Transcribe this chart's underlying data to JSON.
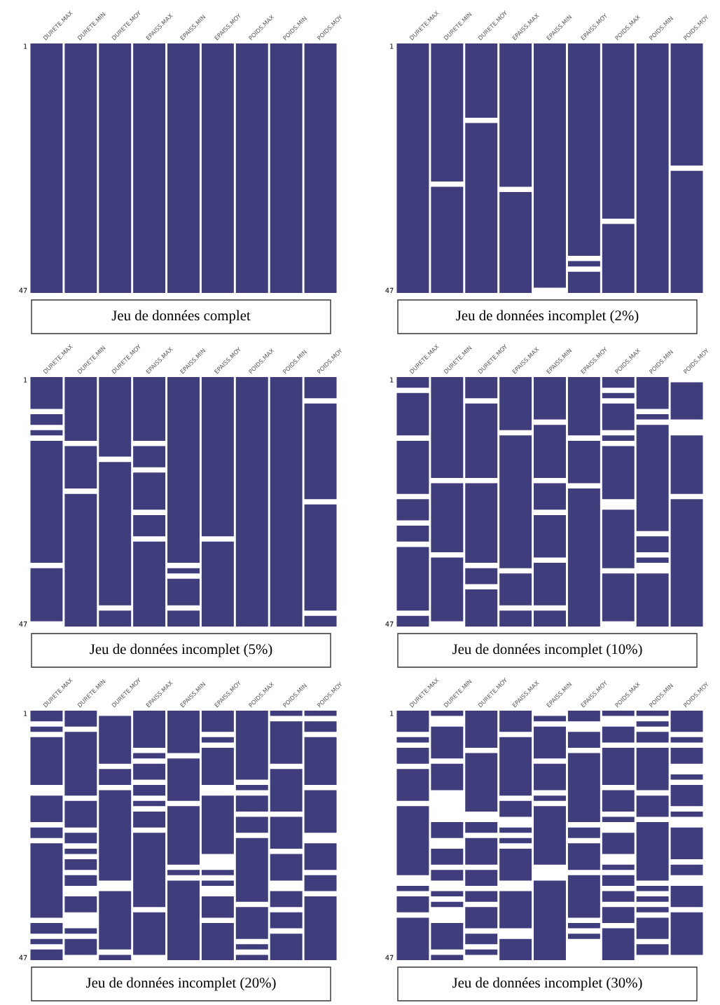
{
  "chart_data": [
    {
      "type": "bar",
      "title": "Jeu de données complet",
      "categories": [
        "DURETE.MAX",
        "DURETE.MIN",
        "DURETE.MOY",
        "EPAISS.MAX",
        "EPAISS.MIN",
        "EPAISS.MOY",
        "POIDS.MAX",
        "POIDS.MIN",
        "POIDS.MOY"
      ],
      "ylim": [
        47.5,
        0.5
      ],
      "yticks": [
        1,
        47
      ],
      "series": [
        {
          "color": "#3f3d7c",
          "base": [
            0.5,
            0.5,
            0.5,
            0.5,
            0.5,
            0.5,
            0.5,
            0.5,
            0.5
          ],
          "values": [
            47,
            47,
            47,
            47,
            47,
            47,
            47,
            47,
            47
          ]
        }
      ]
    },
    {
      "type": "bar",
      "title": "Jeu de données incomplet (2%)",
      "categories": [
        "DURETE.MAX",
        "DURETE.MIN",
        "DURETE.MOY",
        "EPAISS.MAX",
        "EPAISS.MIN",
        "EPAISS.MOY",
        "POIDS.MAX",
        "POIDS.MIN",
        "POIDS.MOY"
      ],
      "ylim": [
        47.5,
        0.5
      ],
      "yticks": [
        1,
        47
      ],
      "series": [
        {
          "color": "#3f3d7c",
          "base": [
            0.5,
            0.5,
            0.5,
            0.5,
            0.5,
            0.5,
            0.5,
            0.5,
            0.5
          ],
          "values": [
            47,
            26,
            14,
            27,
            46,
            40,
            33,
            47,
            23
          ]
        },
        {
          "color": "#3f3d7c",
          "base": [
            null,
            27.5,
            15.5,
            28.5,
            null,
            41.5,
            34.5,
            null,
            24.5
          ],
          "values": [
            null,
            20,
            32,
            19,
            null,
            1,
            13,
            null,
            23
          ]
        },
        {
          "color": "#3f3d7c",
          "base": [
            null,
            null,
            null,
            null,
            null,
            43.5,
            null,
            null,
            null
          ],
          "values": [
            null,
            null,
            null,
            null,
            null,
            4,
            null,
            null,
            null
          ]
        }
      ]
    },
    {
      "type": "bar",
      "title": "Jeu de données incomplet (5%)",
      "categories": [
        "DURETE.MAX",
        "DURETE.MIN",
        "DURETE.MOY",
        "EPAISS.MAX",
        "EPAISS.MIN",
        "EPAISS.MOY",
        "POIDS.MAX",
        "POIDS.MIN",
        "POIDS.MOY"
      ],
      "ylim": [
        47.5,
        0.5
      ],
      "yticks": [
        1,
        47
      ],
      "series": [
        {
          "color": "#3f3d7c",
          "base": [
            0.5,
            0.5,
            0.5,
            0.5,
            0.5,
            0.5,
            0.5,
            0.5,
            0.5
          ],
          "values": [
            6,
            12,
            15,
            12,
            35,
            30,
            47,
            47,
            4
          ]
        },
        {
          "color": "#3f3d7c",
          "base": [
            7.5,
            13.5,
            16.5,
            13.5,
            36.5,
            31.5,
            null,
            null,
            5.5
          ],
          "values": [
            2,
            8,
            27,
            4,
            1,
            16,
            null,
            null,
            18
          ]
        },
        {
          "color": "#3f3d7c",
          "base": [
            10.5,
            22.5,
            44.5,
            18.5,
            38.5,
            null,
            null,
            null,
            24.5
          ],
          "values": [
            1,
            25,
            3,
            7,
            5,
            null,
            null,
            null,
            20
          ]
        },
        {
          "color": "#3f3d7c",
          "base": [
            12.5,
            null,
            null,
            26.5,
            44.5,
            null,
            null,
            null,
            45.5
          ],
          "values": [
            23,
            null,
            null,
            4,
            3,
            null,
            null,
            null,
            2
          ]
        },
        {
          "color": "#3f3d7c",
          "base": [
            36.5,
            null,
            null,
            31.5,
            null,
            null,
            null,
            null,
            null
          ],
          "values": [
            10,
            null,
            null,
            16,
            null,
            null,
            null,
            null,
            null
          ]
        }
      ]
    },
    {
      "type": "bar",
      "title": "Jeu de données incomplet (10%)",
      "categories": [
        "DURETE.MAX",
        "DURETE.MIN",
        "DURETE.MOY",
        "EPAISS.MAX",
        "EPAISS.MIN",
        "EPAISS.MOY",
        "POIDS.MAX",
        "POIDS.MIN",
        "POIDS.MOY"
      ],
      "ylim": [
        47.5,
        0.5
      ],
      "yticks": [
        1,
        47
      ],
      "series": [
        {
          "color": "#3f3d7c",
          "base": [
            0.5,
            0.5,
            0.5,
            0.5,
            0.5,
            0.5,
            0.5,
            0.5,
            1.5
          ],
          "values": [
            2,
            19,
            4,
            10,
            8,
            11,
            2,
            6,
            7
          ]
        },
        {
          "color": "#3f3d7c",
          "base": [
            3.5,
            20.5,
            5.5,
            11.5,
            9.5,
            12.5,
            3.5,
            7.5,
            11.5
          ],
          "values": [
            8,
            13,
            14,
            25,
            10,
            8,
            1,
            1,
            11
          ]
        },
        {
          "color": "#3f3d7c",
          "base": [
            12.5,
            34.5,
            20.5,
            37.5,
            20.5,
            21.5,
            5.5,
            9.5,
            23.5
          ],
          "values": [
            10,
            12,
            15,
            6,
            5,
            26,
            5,
            20,
            24
          ]
        },
        {
          "color": "#3f3d7c",
          "base": [
            23.5,
            null,
            36.5,
            44.5,
            26.5,
            null,
            11.5,
            30.5,
            null
          ],
          "values": [
            4,
            null,
            3,
            3,
            8,
            null,
            1,
            3,
            null
          ]
        },
        {
          "color": "#3f3d7c",
          "base": [
            28.5,
            null,
            40.5,
            null,
            35.5,
            null,
            13.5,
            34.5,
            null
          ],
          "values": [
            3,
            null,
            7,
            null,
            8,
            null,
            10,
            1,
            null
          ]
        },
        {
          "color": "#3f3d7c",
          "base": [
            32.5,
            null,
            null,
            null,
            44.5,
            null,
            25.5,
            37.5,
            null
          ],
          "values": [
            12,
            null,
            null,
            null,
            3,
            null,
            11,
            10,
            null
          ]
        },
        {
          "color": "#3f3d7c",
          "base": [
            45.5,
            null,
            null,
            null,
            null,
            null,
            37.5,
            null,
            null
          ],
          "values": [
            2,
            null,
            null,
            null,
            null,
            null,
            9,
            null,
            null
          ]
        }
      ]
    },
    {
      "type": "bar",
      "title": "Jeu de données incomplet (20%)",
      "categories": [
        "DURETE.MAX",
        "DURETE.MIN",
        "DURETE.MOY",
        "EPAISS.MAX",
        "EPAISS.MIN",
        "EPAISS.MOY",
        "POIDS.MAX",
        "POIDS.MIN",
        "POIDS.MOY"
      ],
      "ylim": [
        47.5,
        0.5
      ],
      "yticks": [
        1,
        47
      ],
      "series": [
        {
          "color": "#3f3d7c",
          "base": [
            0.5,
            0.5,
            1.5,
            0.5,
            0.5,
            0.5,
            0.5,
            0.5,
            0.5
          ],
          "values": [
            2,
            3,
            9,
            7,
            8,
            4,
            13,
            1,
            1
          ]
        },
        {
          "color": "#3f3d7c",
          "base": [
            3.5,
            4.5,
            11.5,
            8.5,
            9.5,
            5.5,
            14.5,
            2.5,
            2.5
          ],
          "values": [
            1,
            12,
            3,
            1,
            8,
            1,
            1,
            8,
            2
          ]
        },
        {
          "color": "#3f3d7c",
          "base": [
            5.5,
            17.5,
            15.5,
            10.5,
            18.5,
            7.5,
            16.5,
            11.5,
            5.5
          ],
          "values": [
            9,
            5,
            17,
            3,
            11,
            7,
            3,
            8,
            9
          ]
        },
        {
          "color": "#3f3d7c",
          "base": [
            16.5,
            23.5,
            34.5,
            14.5,
            30.5,
            16.5,
            20.5,
            20.5,
            15.5
          ],
          "values": [
            5,
            2,
            11,
            2,
            1,
            11,
            3,
            6,
            8
          ]
        },
        {
          "color": "#3f3d7c",
          "base": [
            22.5,
            26.5,
            46.5,
            17.5,
            32.5,
            30.5,
            24.5,
            27.5,
            25.5
          ],
          "values": [
            2,
            1,
            1,
            1,
            15,
            1,
            12,
            5,
            5
          ]
        },
        {
          "color": "#3f3d7c",
          "base": [
            25.5,
            28.5,
            null,
            19.5,
            null,
            32.5,
            37.5,
            34.5,
            31.5
          ],
          "values": [
            14,
            2,
            null,
            3,
            null,
            1,
            6,
            3,
            3
          ]
        },
        {
          "color": "#3f3d7c",
          "base": [
            40.5,
            31.5,
            null,
            23.5,
            null,
            35.5,
            44.5,
            38.5,
            35.5
          ],
          "values": [
            2,
            2,
            null,
            14,
            null,
            4,
            1,
            3,
            12
          ]
        },
        {
          "color": "#3f3d7c",
          "base": [
            43.5,
            35.5,
            null,
            38.5,
            null,
            40.5,
            46.5,
            42.5,
            null
          ],
          "values": [
            1,
            3,
            null,
            8,
            null,
            7,
            1,
            5,
            null
          ]
        },
        {
          "color": "#3f3d7c",
          "base": [
            45.5,
            41.5,
            null,
            null,
            null,
            null,
            null,
            null,
            null
          ],
          "values": [
            2,
            1,
            null,
            null,
            null,
            null,
            null,
            null,
            null
          ]
        },
        {
          "color": "#3f3d7c",
          "base": [
            null,
            43.5,
            null,
            null,
            null,
            null,
            null,
            null,
            null
          ],
          "values": [
            null,
            3,
            null,
            null,
            null,
            null,
            null,
            null,
            null
          ]
        }
      ]
    },
    {
      "type": "bar",
      "title": "Jeu de données incomplet (30%)",
      "categories": [
        "DURETE.MAX",
        "DURETE.MIN",
        "DURETE.MOY",
        "EPAISS.MAX",
        "EPAISS.MIN",
        "EPAISS.MOY",
        "POIDS.MAX",
        "POIDS.MIN",
        "POIDS.MOY"
      ],
      "ylim": [
        47.5,
        0.5
      ],
      "yticks": [
        1,
        47
      ],
      "series": [
        {
          "color": "#3f3d7c",
          "base": [
            0.5,
            0.5,
            0.5,
            0.5,
            1.5,
            0.5,
            0.5,
            0.5,
            0.5
          ],
          "values": [
            4,
            1,
            7,
            4,
            1,
            2,
            1,
            1,
            4
          ]
        },
        {
          "color": "#3f3d7c",
          "base": [
            5.5,
            3.5,
            8.5,
            5.5,
            3.5,
            4.5,
            3.5,
            2.5,
            5.5
          ],
          "values": [
            1,
            6,
            11,
            11,
            6,
            3,
            3,
            1,
            1
          ]
        },
        {
          "color": "#3f3d7c",
          "base": [
            7.5,
            10.5,
            21.5,
            17.5,
            10.5,
            8.5,
            7.5,
            4.5,
            7.5
          ],
          "values": [
            3,
            5,
            2,
            3,
            5,
            13,
            7,
            2,
            3
          ]
        },
        {
          "color": "#3f3d7c",
          "base": [
            11.5,
            21.5,
            24.5,
            22.5,
            16.5,
            22.5,
            15.5,
            7.5,
            12.5
          ],
          "values": [
            6,
            3,
            5,
            1,
            1,
            2,
            4,
            8,
            1
          ]
        },
        {
          "color": "#3f3d7c",
          "base": [
            18.5,
            26.5,
            30.5,
            24.5,
            18.5,
            25.5,
            20.5,
            16.5,
            14.5
          ],
          "values": [
            13,
            3,
            3,
            1,
            11,
            5,
            1,
            4,
            4
          ]
        },
        {
          "color": "#3f3d7c",
          "base": [
            33.5,
            30.5,
            34.5,
            26.5,
            32.5,
            31.5,
            23.5,
            21.5,
            19.5
          ],
          "values": [
            1,
            2,
            2,
            6,
            15,
            8,
            4,
            11,
            1
          ]
        },
        {
          "color": "#3f3d7c",
          "base": [
            35.5,
            34.5,
            37.5,
            34.5,
            null,
            40.5,
            29.5,
            33.5,
            22.5
          ],
          "values": [
            3,
            1,
            4,
            7,
            null,
            1,
            1,
            1,
            6
          ]
        },
        {
          "color": "#3f3d7c",
          "base": [
            39.5,
            36.5,
            42.5,
            43.5,
            null,
            42.5,
            31.5,
            35.5,
            29.5
          ],
          "values": [
            8,
            1,
            2,
            4,
            null,
            1,
            2,
            1,
            2
          ]
        },
        {
          "color": "#3f3d7c",
          "base": [
            null,
            40.5,
            45.5,
            null,
            null,
            null,
            34.5,
            37.5,
            33.5
          ],
          "values": [
            null,
            5,
            1,
            null,
            null,
            null,
            2,
            1,
            4
          ]
        },
        {
          "color": "#3f3d7c",
          "base": [
            null,
            46.5,
            null,
            null,
            null,
            null,
            37.5,
            39.5,
            38.5
          ],
          "values": [
            null,
            1,
            null,
            null,
            null,
            null,
            3,
            4,
            8
          ]
        },
        {
          "color": "#3f3d7c",
          "base": [
            null,
            null,
            null,
            null,
            null,
            null,
            41.5,
            44.5,
            null
          ],
          "values": [
            null,
            null,
            null,
            null,
            null,
            null,
            6,
            2,
            null
          ]
        }
      ]
    }
  ]
}
